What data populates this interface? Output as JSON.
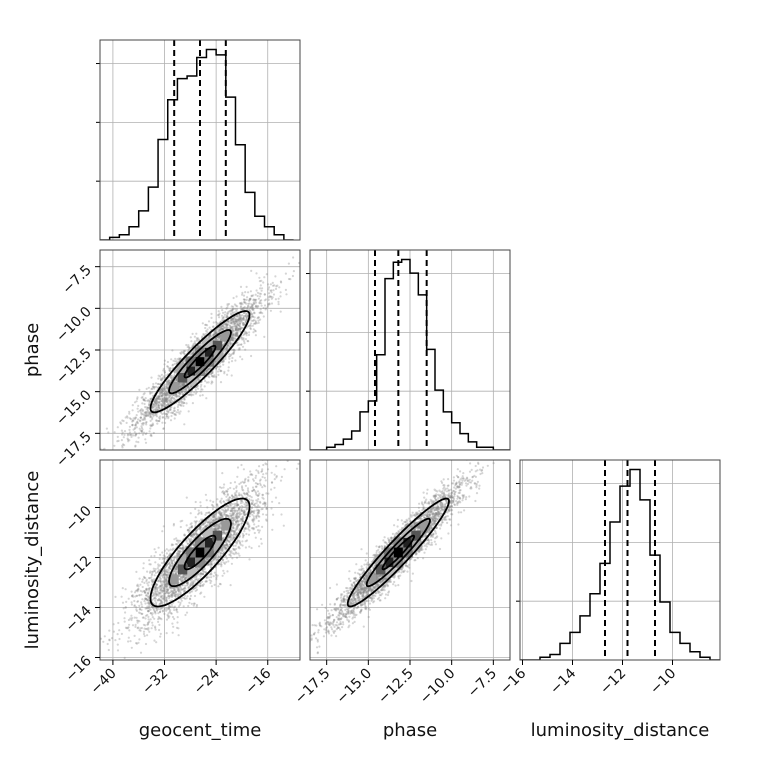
{
  "chart_data": {
    "type": "corner",
    "parameters": [
      "geocent_time",
      "phase",
      "luminosity_distance"
    ],
    "axis_labels": {
      "x": [
        "geocent_time",
        "phase",
        "luminosity_distance"
      ],
      "y": [
        "phase",
        "luminosity_distance"
      ]
    },
    "ranges": {
      "geocent_time": [
        -42,
        -11
      ],
      "phase": [
        -18.5,
        -6.5
      ],
      "luminosity_distance": [
        -16.1,
        -8.1
      ]
    },
    "ticks": {
      "geocent_time": {
        "values": [
          -40,
          -32,
          -24,
          -16
        ],
        "labels": [
          "−40",
          "−32",
          "−24",
          "−16"
        ]
      },
      "phase": {
        "values": [
          -17.5,
          -15.0,
          -12.5,
          -10.0,
          -7.5
        ],
        "labels": [
          "−17.5",
          "−15.0",
          "−12.5",
          "−10.0",
          "−7.5"
        ]
      },
      "luminosity_distance": {
        "values": [
          -16,
          -14,
          -12,
          -10
        ],
        "labels": [
          "−16",
          "−14",
          "−12",
          "−10"
        ]
      }
    },
    "quantiles": {
      "geocent_time": [
        -30.5,
        -26.5,
        -22.5
      ],
      "phase": [
        -14.6,
        -13.2,
        -11.5
      ],
      "luminosity_distance": [
        -12.7,
        -11.8,
        -10.7
      ]
    },
    "histograms": {
      "geocent_time": {
        "edges": [
          -42,
          -40.5,
          -39,
          -37.5,
          -36,
          -34.5,
          -33,
          -31.5,
          -30,
          -28.5,
          -27,
          -25.5,
          -24,
          -22.5,
          -21,
          -19.5,
          -18,
          -16.5,
          -15,
          -13.5,
          -12
        ],
        "counts": [
          0,
          1,
          2,
          5,
          11,
          20,
          38,
          53,
          61,
          62,
          69,
          72,
          70,
          54,
          36,
          18,
          9,
          5,
          2,
          0
        ]
      },
      "phase": {
        "edges": [
          -18.5,
          -18,
          -17.5,
          -17,
          -16.5,
          -16,
          -15.5,
          -15,
          -14.5,
          -14,
          -13.5,
          -13,
          -12.5,
          -12,
          -11.5,
          -11,
          -10.5,
          -10,
          -9.5,
          -9,
          -8.5,
          -8,
          -7.5,
          -7,
          -6.5
        ],
        "counts": [
          0,
          0,
          1,
          2,
          4,
          7,
          14,
          18,
          35,
          63,
          69,
          70,
          65,
          57,
          37,
          22,
          14,
          10,
          6,
          3,
          1,
          1,
          0,
          0
        ]
      },
      "luminosity_distance": {
        "edges": [
          -16.1,
          -15.7,
          -15.3,
          -14.9,
          -14.5,
          -14.1,
          -13.7,
          -13.3,
          -12.9,
          -12.5,
          -12.1,
          -11.7,
          -11.3,
          -10.9,
          -10.5,
          -10.1,
          -9.7,
          -9.3,
          -8.9,
          -8.5,
          -8.1
        ],
        "counts": [
          0,
          0,
          1,
          2,
          6,
          10,
          16,
          24,
          35,
          50,
          63,
          69,
          58,
          38,
          21,
          10,
          6,
          3,
          1,
          0
        ]
      }
    },
    "pairs": [
      {
        "x": "geocent_time",
        "y": "phase",
        "mean": [
          -26.5,
          -13.2
        ],
        "sd": [
          4.8,
          1.9
        ],
        "corr": 0.92,
        "count": 3500
      },
      {
        "x": "geocent_time",
        "y": "luminosity_distance",
        "mean": [
          -26.5,
          -11.8
        ],
        "sd": [
          4.8,
          1.35
        ],
        "corr": 0.85,
        "count": 3500
      },
      {
        "x": "phase",
        "y": "luminosity_distance",
        "mean": [
          -13.2,
          -11.8
        ],
        "sd": [
          1.9,
          1.35
        ],
        "corr": 0.95,
        "count": 3500
      }
    ],
    "contour_levels": [
      0.5,
      1.0,
      1.6
    ],
    "grid": true,
    "colors": {
      "line": "#000000",
      "points": "#888888",
      "grid": "#b0b0b0"
    }
  }
}
